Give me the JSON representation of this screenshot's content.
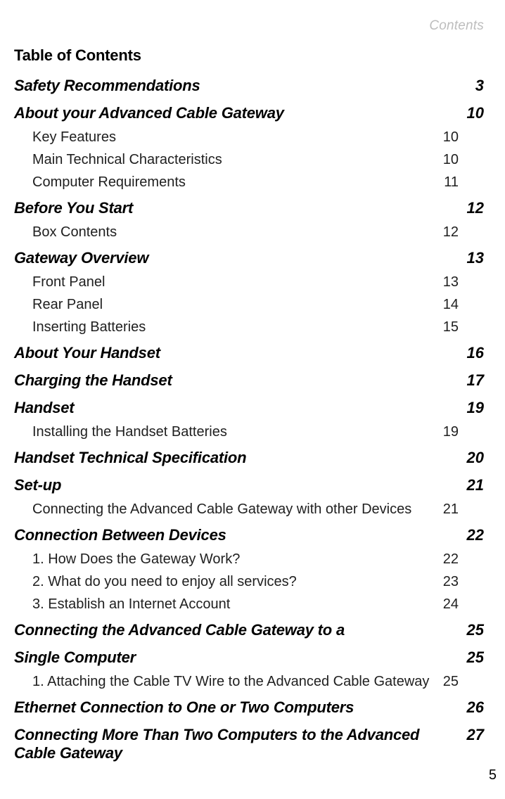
{
  "header_label": "Contents",
  "title": "Table of Contents",
  "entries": [
    {
      "type": "section",
      "label": "Safety Recommendations",
      "page": "3"
    },
    {
      "type": "section",
      "label": "About your Advanced Cable Gateway",
      "page": "10"
    },
    {
      "type": "sub",
      "label": "Key Features",
      "page": "10"
    },
    {
      "type": "sub",
      "label": "Main Technical Characteristics",
      "page": "10"
    },
    {
      "type": "sub",
      "label": "Computer Requirements",
      "page": "11"
    },
    {
      "type": "section",
      "label": "Before You Start",
      "page": "12"
    },
    {
      "type": "sub",
      "label": "Box Contents",
      "page": "12"
    },
    {
      "type": "section",
      "label": "Gateway Overview",
      "page": "13"
    },
    {
      "type": "sub",
      "label": "Front Panel",
      "page": "13"
    },
    {
      "type": "sub",
      "label": "Rear Panel",
      "page": "14"
    },
    {
      "type": "sub",
      "label": "Inserting Batteries",
      "page": "15"
    },
    {
      "type": "section",
      "label": "About Your Handset",
      "page": "16"
    },
    {
      "type": "section",
      "label": "Charging the Handset",
      "page": "17"
    },
    {
      "type": "section",
      "label": "Handset",
      "page": "19"
    },
    {
      "type": "sub",
      "label": "Installing the Handset Batteries",
      "page": "19"
    },
    {
      "type": "section",
      "label": "Handset Technical Specification",
      "page": "20"
    },
    {
      "type": "section",
      "label": "Set-up",
      "page": "21"
    },
    {
      "type": "sub",
      "label": "Connecting the Advanced Cable Gateway with other Devices",
      "page": "21"
    },
    {
      "type": "section",
      "label": "Connection Between Devices",
      "page": "22"
    },
    {
      "type": "sub",
      "label": "1. How Does the Gateway Work?",
      "page": "22"
    },
    {
      "type": "sub",
      "label": "2. What do you need to enjoy all services?",
      "page": "23"
    },
    {
      "type": "sub",
      "label": "3. Establish an Internet Account",
      "page": "24"
    },
    {
      "type": "section",
      "label": "Connecting the Advanced Cable Gateway to a",
      "page": "25"
    },
    {
      "type": "section",
      "label": "Single Computer",
      "page": "25"
    },
    {
      "type": "sub",
      "label": "1. Attaching the Cable TV Wire to the Advanced Cable Gateway",
      "page": "25"
    },
    {
      "type": "section",
      "label": "Ethernet Connection to One or Two Computers",
      "page": "26"
    },
    {
      "type": "section",
      "label": "Connecting More Than Two Computers to the Advanced Cable Gateway",
      "page": "27"
    }
  ],
  "page_number": "5"
}
